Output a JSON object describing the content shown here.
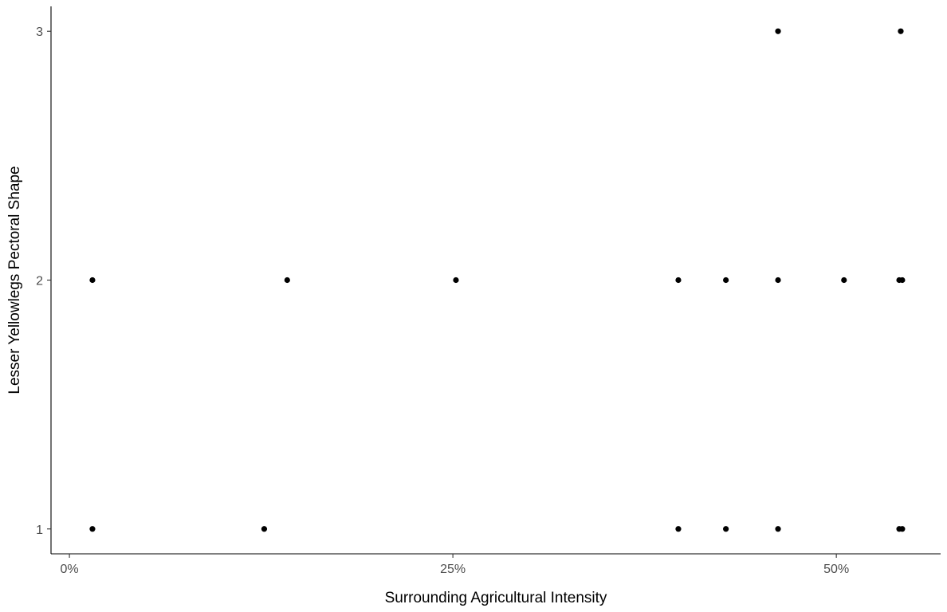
{
  "chart_data": {
    "type": "scatter",
    "title": "",
    "xlabel": "Surrounding Agricultural Intensity",
    "ylabel": "Lesser Yellowlegs Pectoral Shape",
    "x_ticks": [
      {
        "value": 0.0,
        "label": "0%"
      },
      {
        "value": 0.25,
        "label": "25%"
      },
      {
        "value": 0.5,
        "label": "50%"
      }
    ],
    "y_ticks": [
      {
        "value": 1,
        "label": "1"
      },
      {
        "value": 2,
        "label": "2"
      },
      {
        "value": 3,
        "label": "3"
      }
    ],
    "xlim": [
      -0.012,
      0.568
    ],
    "ylim": [
      0.9,
      3.1
    ],
    "grid": false,
    "legend": "none",
    "point_color": "#000000",
    "points": [
      {
        "x": 0.015,
        "y": 1
      },
      {
        "x": 0.015,
        "y": 2
      },
      {
        "x": 0.127,
        "y": 1
      },
      {
        "x": 0.142,
        "y": 2
      },
      {
        "x": 0.252,
        "y": 2
      },
      {
        "x": 0.397,
        "y": 1
      },
      {
        "x": 0.397,
        "y": 2
      },
      {
        "x": 0.428,
        "y": 1
      },
      {
        "x": 0.428,
        "y": 2
      },
      {
        "x": 0.462,
        "y": 1
      },
      {
        "x": 0.462,
        "y": 2
      },
      {
        "x": 0.462,
        "y": 3
      },
      {
        "x": 0.505,
        "y": 2
      },
      {
        "x": 0.541,
        "y": 1
      },
      {
        "x": 0.543,
        "y": 1
      },
      {
        "x": 0.541,
        "y": 2
      },
      {
        "x": 0.543,
        "y": 2
      },
      {
        "x": 0.542,
        "y": 3
      }
    ]
  }
}
